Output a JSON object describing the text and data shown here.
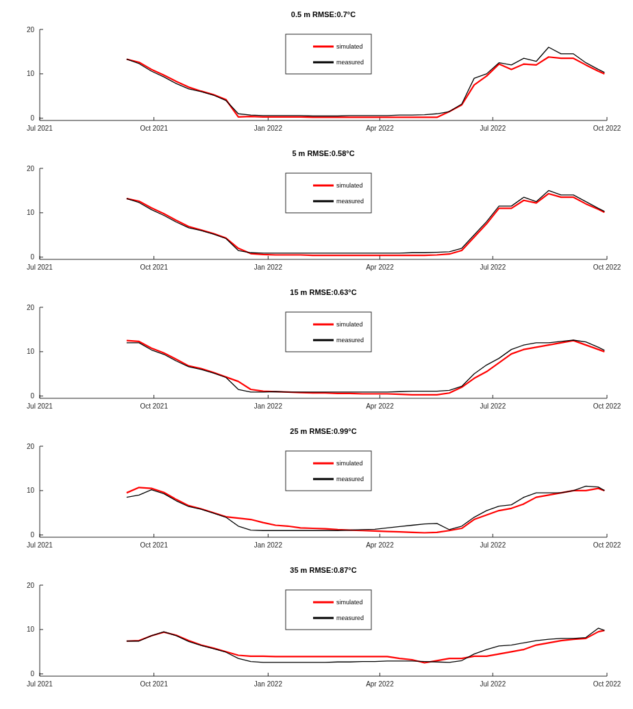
{
  "chart_data": [
    {
      "type": "line",
      "title": "0.5 m RMSE:0.7°C",
      "legend": "top",
      "xlim": [
        "2021-07-01",
        "2022-10-01"
      ],
      "xticks": [
        {
          "value": "2021-07-01",
          "label": "Jul 2021"
        },
        {
          "value": "2021-10-01",
          "label": "Oct 2021"
        },
        {
          "value": "2022-01-01",
          "label": "Jan 2022"
        },
        {
          "value": "2022-04-01",
          "label": "Apr 2022"
        },
        {
          "value": "2022-07-01",
          "label": "Jul 2022"
        },
        {
          "value": "2022-10-01",
          "label": "Oct 2022"
        }
      ],
      "ylim": [
        -0.5,
        20
      ],
      "yticks": [
        0,
        10,
        20
      ],
      "x": [
        "2021-09-09",
        "2021-09-19",
        "2021-09-29",
        "2021-10-09",
        "2021-10-19",
        "2021-10-29",
        "2021-11-08",
        "2021-11-18",
        "2021-11-28",
        "2021-12-08",
        "2021-12-18",
        "2021-12-28",
        "2022-01-07",
        "2022-01-17",
        "2022-01-27",
        "2022-02-06",
        "2022-02-16",
        "2022-02-26",
        "2022-03-08",
        "2022-03-18",
        "2022-03-28",
        "2022-04-07",
        "2022-04-17",
        "2022-04-27",
        "2022-05-07",
        "2022-05-17",
        "2022-05-27",
        "2022-06-06",
        "2022-06-16",
        "2022-06-26",
        "2022-07-06",
        "2022-07-16",
        "2022-07-26",
        "2022-08-05",
        "2022-08-15",
        "2022-08-25",
        "2022-09-04",
        "2022-09-14",
        "2022-09-24",
        "2022-09-29"
      ],
      "series": [
        {
          "name": "simulated",
          "color": "#ff0000",
          "values": [
            13.3,
            12.6,
            11.0,
            9.7,
            8.3,
            7.0,
            6.1,
            5.3,
            4.2,
            0.3,
            0.4,
            0.3,
            0.3,
            0.3,
            0.3,
            0.2,
            0.2,
            0.2,
            0.2,
            0.2,
            0.2,
            0.2,
            0.2,
            0.2,
            0.2,
            0.2,
            1.5,
            3.0,
            7.5,
            9.5,
            12.2,
            11.0,
            12.2,
            12.0,
            13.8,
            13.5,
            13.5,
            12.0,
            10.6,
            10.0
          ]
        },
        {
          "name": "measured",
          "color": "#000000",
          "values": [
            13.3,
            12.3,
            10.6,
            9.3,
            7.8,
            6.6,
            6.0,
            5.2,
            4.0,
            1.0,
            0.7,
            0.6,
            0.6,
            0.6,
            0.6,
            0.5,
            0.5,
            0.5,
            0.6,
            0.6,
            0.6,
            0.6,
            0.7,
            0.7,
            0.8,
            1.0,
            1.5,
            3.2,
            9.0,
            10.0,
            12.5,
            12.0,
            13.5,
            12.8,
            16.0,
            14.5,
            14.5,
            12.5,
            11.0,
            10.3
          ]
        }
      ]
    },
    {
      "type": "line",
      "title": "5 m RMSE:0.58°C",
      "legend": "top",
      "xlim": [
        "2021-07-01",
        "2022-10-01"
      ],
      "xticks": [
        {
          "value": "2021-07-01",
          "label": "Jul 2021"
        },
        {
          "value": "2021-10-01",
          "label": "Oct 2021"
        },
        {
          "value": "2022-01-01",
          "label": "Jan 2022"
        },
        {
          "value": "2022-04-01",
          "label": "Apr 2022"
        },
        {
          "value": "2022-07-01",
          "label": "Jul 2022"
        },
        {
          "value": "2022-10-01",
          "label": "Oct 2022"
        }
      ],
      "ylim": [
        -0.5,
        20
      ],
      "yticks": [
        0,
        10,
        20
      ],
      "x": [
        "2021-09-09",
        "2021-09-19",
        "2021-09-29",
        "2021-10-09",
        "2021-10-19",
        "2021-10-29",
        "2021-11-08",
        "2021-11-18",
        "2021-11-28",
        "2021-12-08",
        "2021-12-18",
        "2021-12-28",
        "2022-01-07",
        "2022-01-17",
        "2022-01-27",
        "2022-02-06",
        "2022-02-16",
        "2022-02-26",
        "2022-03-08",
        "2022-03-18",
        "2022-03-28",
        "2022-04-07",
        "2022-04-17",
        "2022-04-27",
        "2022-05-07",
        "2022-05-17",
        "2022-05-27",
        "2022-06-06",
        "2022-06-16",
        "2022-06-26",
        "2022-07-06",
        "2022-07-16",
        "2022-07-26",
        "2022-08-05",
        "2022-08-15",
        "2022-08-25",
        "2022-09-04",
        "2022-09-14",
        "2022-09-24",
        "2022-09-29"
      ],
      "series": [
        {
          "name": "simulated",
          "color": "#ff0000",
          "values": [
            13.2,
            12.6,
            11.1,
            9.8,
            8.3,
            6.9,
            6.1,
            5.3,
            4.3,
            2.0,
            0.8,
            0.6,
            0.5,
            0.5,
            0.5,
            0.4,
            0.4,
            0.4,
            0.4,
            0.4,
            0.4,
            0.4,
            0.4,
            0.4,
            0.4,
            0.5,
            0.7,
            1.5,
            4.5,
            7.5,
            11.0,
            11.0,
            12.8,
            12.2,
            14.3,
            13.5,
            13.5,
            12.0,
            10.8,
            10.1
          ]
        },
        {
          "name": "measured",
          "color": "#000000",
          "values": [
            13.2,
            12.3,
            10.7,
            9.4,
            7.9,
            6.6,
            6.0,
            5.2,
            4.2,
            1.5,
            1.0,
            0.9,
            0.9,
            0.9,
            0.9,
            0.9,
            0.9,
            0.9,
            0.9,
            0.9,
            0.9,
            0.9,
            0.9,
            1.0,
            1.0,
            1.1,
            1.2,
            2.0,
            5.0,
            8.0,
            11.5,
            11.5,
            13.5,
            12.5,
            15.0,
            14.0,
            14.0,
            12.5,
            11.0,
            10.3
          ]
        }
      ]
    },
    {
      "type": "line",
      "title": "15 m RMSE:0.63°C",
      "legend": "top",
      "xlim": [
        "2021-07-01",
        "2022-10-01"
      ],
      "xticks": [
        {
          "value": "2021-07-01",
          "label": "Jul 2021"
        },
        {
          "value": "2021-10-01",
          "label": "Oct 2021"
        },
        {
          "value": "2022-01-01",
          "label": "Jan 2022"
        },
        {
          "value": "2022-04-01",
          "label": "Apr 2022"
        },
        {
          "value": "2022-07-01",
          "label": "Jul 2022"
        },
        {
          "value": "2022-10-01",
          "label": "Oct 2022"
        }
      ],
      "ylim": [
        -0.5,
        20
      ],
      "yticks": [
        0,
        10,
        20
      ],
      "x": [
        "2021-09-09",
        "2021-09-19",
        "2021-09-29",
        "2021-10-09",
        "2021-10-19",
        "2021-10-29",
        "2021-11-08",
        "2021-11-18",
        "2021-11-28",
        "2021-12-08",
        "2021-12-18",
        "2021-12-28",
        "2022-01-07",
        "2022-01-17",
        "2022-01-27",
        "2022-02-06",
        "2022-02-16",
        "2022-02-26",
        "2022-03-08",
        "2022-03-18",
        "2022-03-28",
        "2022-04-07",
        "2022-04-17",
        "2022-04-27",
        "2022-05-07",
        "2022-05-17",
        "2022-05-27",
        "2022-06-06",
        "2022-06-16",
        "2022-06-26",
        "2022-07-06",
        "2022-07-16",
        "2022-07-26",
        "2022-08-05",
        "2022-08-15",
        "2022-08-25",
        "2022-09-04",
        "2022-09-14",
        "2022-09-24",
        "2022-09-29"
      ],
      "series": [
        {
          "name": "simulated",
          "color": "#ff0000",
          "values": [
            12.5,
            12.3,
            10.8,
            9.7,
            8.3,
            6.8,
            6.2,
            5.3,
            4.3,
            3.3,
            1.5,
            1.1,
            1.0,
            0.9,
            0.8,
            0.7,
            0.7,
            0.6,
            0.6,
            0.5,
            0.5,
            0.5,
            0.4,
            0.3,
            0.3,
            0.3,
            0.7,
            2.0,
            4.0,
            5.5,
            7.5,
            9.5,
            10.5,
            11.0,
            11.5,
            12.0,
            12.5,
            11.5,
            10.5,
            10.0
          ]
        },
        {
          "name": "measured",
          "color": "#000000",
          "values": [
            12.0,
            12.0,
            10.4,
            9.4,
            7.9,
            6.6,
            6.0,
            5.2,
            4.2,
            1.5,
            0.9,
            0.9,
            1.0,
            0.9,
            0.9,
            0.9,
            0.9,
            0.9,
            0.9,
            0.9,
            0.9,
            0.9,
            1.0,
            1.1,
            1.1,
            1.1,
            1.3,
            2.2,
            5.0,
            7.0,
            8.5,
            10.5,
            11.5,
            12.0,
            12.0,
            12.3,
            12.6,
            12.2,
            11.0,
            10.3
          ]
        }
      ]
    },
    {
      "type": "line",
      "title": "25 m RMSE:0.99°C",
      "legend": "top",
      "xlim": [
        "2021-07-01",
        "2022-10-01"
      ],
      "xticks": [
        {
          "value": "2021-07-01",
          "label": "Jul 2021"
        },
        {
          "value": "2021-10-01",
          "label": "Oct 2021"
        },
        {
          "value": "2022-01-01",
          "label": "Jan 2022"
        },
        {
          "value": "2022-04-01",
          "label": "Apr 2022"
        },
        {
          "value": "2022-07-01",
          "label": "Jul 2022"
        },
        {
          "value": "2022-10-01",
          "label": "Oct 2022"
        }
      ],
      "ylim": [
        -0.5,
        20
      ],
      "yticks": [
        0,
        10,
        20
      ],
      "x": [
        "2021-09-09",
        "2021-09-19",
        "2021-09-29",
        "2021-10-09",
        "2021-10-19",
        "2021-10-29",
        "2021-11-08",
        "2021-11-18",
        "2021-11-28",
        "2021-12-08",
        "2021-12-18",
        "2021-12-28",
        "2022-01-07",
        "2022-01-17",
        "2022-01-27",
        "2022-02-06",
        "2022-02-16",
        "2022-02-26",
        "2022-03-08",
        "2022-03-18",
        "2022-03-28",
        "2022-04-07",
        "2022-04-17",
        "2022-04-27",
        "2022-05-07",
        "2022-05-17",
        "2022-05-27",
        "2022-06-06",
        "2022-06-16",
        "2022-06-26",
        "2022-07-06",
        "2022-07-16",
        "2022-07-26",
        "2022-08-05",
        "2022-08-15",
        "2022-08-25",
        "2022-09-04",
        "2022-09-14",
        "2022-09-24",
        "2022-09-29"
      ],
      "series": [
        {
          "name": "simulated",
          "color": "#ff0000",
          "values": [
            9.5,
            10.7,
            10.5,
            9.6,
            8.0,
            6.6,
            5.9,
            5.0,
            4.1,
            3.8,
            3.5,
            2.8,
            2.2,
            2.0,
            1.6,
            1.5,
            1.4,
            1.2,
            1.1,
            1.0,
            0.9,
            0.8,
            0.7,
            0.6,
            0.5,
            0.6,
            1.0,
            1.5,
            3.5,
            4.5,
            5.5,
            6.0,
            7.0,
            8.5,
            9.0,
            9.5,
            10.0,
            10.0,
            10.5,
            10.0
          ]
        },
        {
          "name": "measured",
          "color": "#000000",
          "values": [
            8.5,
            9.0,
            10.2,
            9.3,
            7.7,
            6.4,
            5.8,
            4.9,
            4.0,
            2.0,
            1.1,
            1.0,
            1.0,
            1.0,
            1.0,
            1.0,
            1.0,
            1.0,
            1.1,
            1.2,
            1.3,
            1.6,
            1.9,
            2.2,
            2.5,
            2.6,
            1.2,
            2.0,
            4.0,
            5.5,
            6.5,
            6.8,
            8.5,
            9.5,
            9.5,
            9.5,
            10.0,
            11.0,
            10.8,
            10.0
          ]
        }
      ]
    },
    {
      "type": "line",
      "title": "35 m RMSE:0.87°C",
      "legend": "top",
      "xlim": [
        "2021-07-01",
        "2022-10-01"
      ],
      "xticks": [
        {
          "value": "2021-07-01",
          "label": "Jul 2021"
        },
        {
          "value": "2021-10-01",
          "label": "Oct 2021"
        },
        {
          "value": "2022-01-01",
          "label": "Jan 2022"
        },
        {
          "value": "2022-04-01",
          "label": "Apr 2022"
        },
        {
          "value": "2022-07-01",
          "label": "Jul 2022"
        },
        {
          "value": "2022-10-01",
          "label": "Oct 2022"
        }
      ],
      "ylim": [
        -0.5,
        20
      ],
      "yticks": [
        0,
        10,
        20
      ],
      "x": [
        "2021-09-09",
        "2021-09-19",
        "2021-09-29",
        "2021-10-09",
        "2021-10-19",
        "2021-10-29",
        "2021-11-08",
        "2021-11-18",
        "2021-11-28",
        "2021-12-08",
        "2021-12-18",
        "2021-12-28",
        "2022-01-07",
        "2022-01-17",
        "2022-01-27",
        "2022-02-06",
        "2022-02-16",
        "2022-02-26",
        "2022-03-08",
        "2022-03-18",
        "2022-03-28",
        "2022-04-07",
        "2022-04-17",
        "2022-04-27",
        "2022-05-07",
        "2022-05-17",
        "2022-05-27",
        "2022-06-06",
        "2022-06-16",
        "2022-06-26",
        "2022-07-06",
        "2022-07-16",
        "2022-07-26",
        "2022-08-05",
        "2022-08-15",
        "2022-08-25",
        "2022-09-04",
        "2022-09-14",
        "2022-09-24",
        "2022-09-29"
      ],
      "series": [
        {
          "name": "simulated",
          "color": "#ff0000",
          "values": [
            7.4,
            7.5,
            8.6,
            9.4,
            8.7,
            7.5,
            6.5,
            5.8,
            5.0,
            4.2,
            4.0,
            4.0,
            3.9,
            3.9,
            3.9,
            3.9,
            3.9,
            3.9,
            3.9,
            3.9,
            3.9,
            3.9,
            3.5,
            3.2,
            2.5,
            3.0,
            3.5,
            3.5,
            4.0,
            4.0,
            4.5,
            5.0,
            5.5,
            6.5,
            7.0,
            7.5,
            7.8,
            8.0,
            9.5,
            9.8
          ]
        },
        {
          "name": "measured",
          "color": "#000000",
          "values": [
            7.4,
            7.4,
            8.6,
            9.5,
            8.6,
            7.3,
            6.4,
            5.7,
            4.9,
            3.5,
            2.8,
            2.6,
            2.6,
            2.6,
            2.6,
            2.6,
            2.6,
            2.7,
            2.7,
            2.8,
            2.8,
            2.9,
            2.9,
            2.9,
            2.8,
            2.7,
            2.6,
            3.0,
            4.5,
            5.5,
            6.3,
            6.5,
            7.0,
            7.5,
            7.8,
            8.0,
            8.0,
            8.2,
            10.3,
            9.8
          ]
        }
      ]
    }
  ]
}
